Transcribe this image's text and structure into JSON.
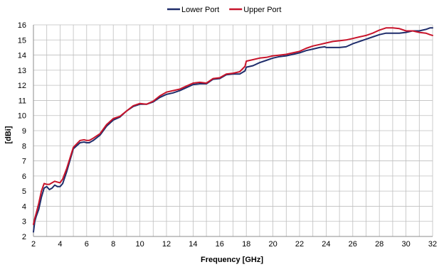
{
  "chart_data": {
    "type": "line",
    "title": "",
    "xlabel": "Frequency [GHz]",
    "ylabel": "[dBi]",
    "xlim": [
      2,
      32
    ],
    "ylim": [
      2,
      16
    ],
    "x_ticks": [
      2,
      4,
      6,
      8,
      10,
      12,
      14,
      16,
      18,
      20,
      22,
      24,
      26,
      28,
      30,
      32
    ],
    "y_ticks": [
      2,
      3,
      4,
      5,
      6,
      7,
      8,
      9,
      10,
      11,
      12,
      13,
      14,
      15,
      16
    ],
    "x_minor_step": 1,
    "grid": true,
    "legend_position": "top-center",
    "series": [
      {
        "name": "Lower Port",
        "color": "#1f2d6b",
        "x": [
          2.0,
          2.1,
          2.2,
          2.4,
          2.6,
          2.8,
          3.0,
          3.2,
          3.4,
          3.6,
          3.8,
          4.0,
          4.2,
          4.5,
          5.0,
          5.5,
          5.8,
          6.0,
          6.2,
          6.5,
          7.0,
          7.5,
          8.0,
          8.5,
          9.0,
          9.5,
          10.0,
          10.5,
          11.0,
          11.5,
          12.0,
          12.5,
          13.0,
          13.5,
          14.0,
          14.5,
          15.0,
          15.5,
          16.0,
          16.5,
          17.0,
          17.5,
          17.9,
          18.0,
          18.5,
          19.0,
          19.5,
          20.0,
          20.5,
          21.0,
          21.5,
          22.0,
          22.5,
          23.0,
          23.5,
          23.9,
          24.0,
          24.5,
          25.0,
          25.5,
          26.0,
          26.5,
          27.0,
          27.5,
          28.0,
          28.5,
          29.0,
          29.5,
          30.0,
          30.5,
          31.0,
          31.5,
          31.8,
          32.0
        ],
        "y": [
          2.3,
          3.0,
          3.3,
          3.8,
          4.6,
          5.2,
          5.3,
          5.1,
          5.2,
          5.4,
          5.3,
          5.3,
          5.5,
          6.3,
          7.8,
          8.2,
          8.25,
          8.2,
          8.2,
          8.35,
          8.7,
          9.3,
          9.7,
          9.9,
          10.3,
          10.6,
          10.75,
          10.75,
          10.9,
          11.2,
          11.4,
          11.5,
          11.65,
          11.85,
          12.05,
          12.1,
          12.1,
          12.4,
          12.45,
          12.7,
          12.75,
          12.75,
          12.95,
          13.2,
          13.3,
          13.5,
          13.65,
          13.8,
          13.9,
          13.95,
          14.05,
          14.15,
          14.3,
          14.4,
          14.5,
          14.55,
          14.5,
          14.5,
          14.5,
          14.55,
          14.75,
          14.9,
          15.05,
          15.2,
          15.35,
          15.45,
          15.45,
          15.45,
          15.5,
          15.6,
          15.6,
          15.7,
          15.8,
          15.8
        ]
      },
      {
        "name": "Upper Port",
        "color": "#c8142b",
        "x": [
          2.0,
          2.1,
          2.2,
          2.4,
          2.6,
          2.8,
          3.0,
          3.2,
          3.4,
          3.6,
          3.8,
          4.0,
          4.2,
          4.5,
          5.0,
          5.5,
          5.8,
          6.0,
          6.2,
          6.5,
          7.0,
          7.5,
          8.0,
          8.5,
          9.0,
          9.5,
          10.0,
          10.5,
          11.0,
          11.5,
          12.0,
          12.5,
          13.0,
          13.5,
          14.0,
          14.5,
          15.0,
          15.5,
          16.0,
          16.5,
          17.0,
          17.5,
          17.9,
          18.0,
          18.5,
          19.0,
          19.5,
          20.0,
          20.5,
          21.0,
          21.5,
          22.0,
          22.5,
          23.0,
          23.5,
          24.0,
          24.5,
          25.0,
          25.5,
          26.0,
          26.5,
          27.0,
          27.5,
          28.0,
          28.5,
          29.0,
          29.5,
          30.0,
          30.5,
          31.0,
          31.5,
          31.8,
          32.0
        ],
        "y": [
          2.8,
          3.2,
          3.5,
          4.2,
          5.0,
          5.5,
          5.45,
          5.45,
          5.55,
          5.65,
          5.6,
          5.55,
          5.8,
          6.5,
          7.9,
          8.35,
          8.4,
          8.35,
          8.35,
          8.5,
          8.8,
          9.4,
          9.8,
          9.95,
          10.3,
          10.65,
          10.8,
          10.75,
          10.95,
          11.3,
          11.55,
          11.65,
          11.75,
          11.95,
          12.15,
          12.2,
          12.15,
          12.45,
          12.5,
          12.75,
          12.8,
          12.9,
          13.25,
          13.6,
          13.7,
          13.8,
          13.85,
          13.95,
          14.0,
          14.05,
          14.15,
          14.25,
          14.45,
          14.6,
          14.7,
          14.8,
          14.9,
          14.95,
          15.0,
          15.1,
          15.2,
          15.3,
          15.45,
          15.65,
          15.8,
          15.8,
          15.75,
          15.6,
          15.6,
          15.5,
          15.45,
          15.35,
          15.3
        ]
      }
    ]
  }
}
